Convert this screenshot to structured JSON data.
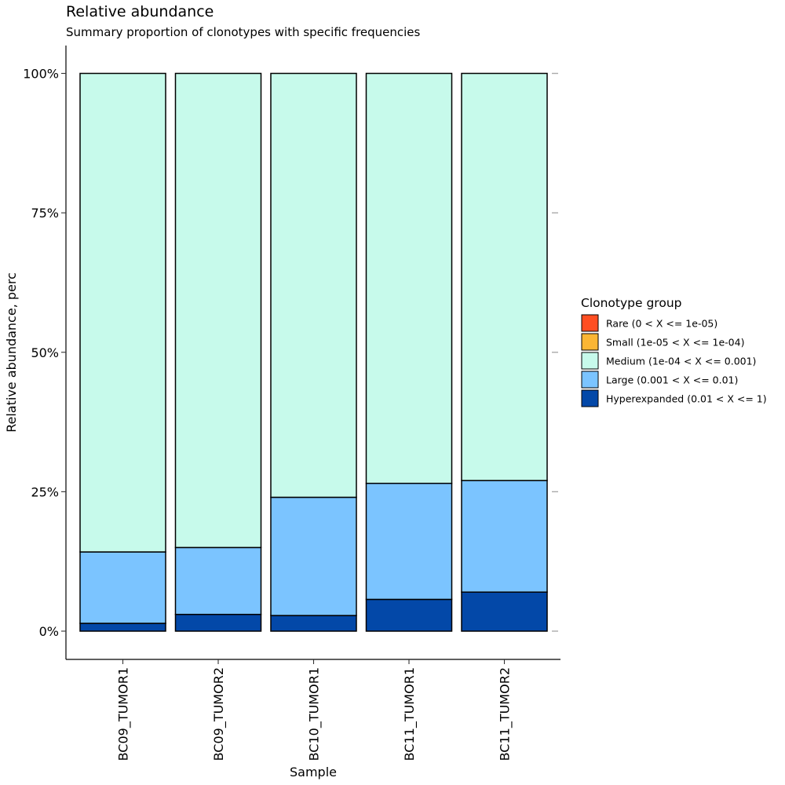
{
  "chart_data": {
    "type": "bar",
    "stacked": true,
    "title": "Relative abundance",
    "subtitle": "Summary proportion of clonotypes with specific frequencies",
    "xlabel": "Sample",
    "ylabel": "Relative abundance, perc",
    "ylim": [
      0,
      1
    ],
    "yticks": [
      0,
      0.25,
      0.5,
      0.75,
      1.0
    ],
    "ytick_labels": [
      "0%",
      "25%",
      "50%",
      "75%",
      "100%"
    ],
    "grid": false,
    "legend_placement": "right",
    "legend_title": "Clonotype group",
    "categories": [
      "BC09_TUMOR1",
      "BC09_TUMOR2",
      "BC10_TUMOR1",
      "BC11_TUMOR1",
      "BC11_TUMOR2"
    ],
    "series": [
      {
        "name": "Rare (0 < X <= 1e-05)",
        "color": "#FF4E22",
        "values": [
          0,
          0,
          0,
          0,
          0
        ]
      },
      {
        "name": "Small (1e-05 < X <= 1e-04)",
        "color": "#FBB634",
        "values": [
          0,
          0,
          0,
          0,
          0
        ]
      },
      {
        "name": "Medium (1e-04 < X <= 0.001)",
        "color": "#C7FAEB",
        "values": [
          0.858,
          0.85,
          0.76,
          0.735,
          0.73
        ]
      },
      {
        "name": "Large (0.001 < X <= 0.01)",
        "color": "#7BC4FF",
        "values": [
          0.128,
          0.12,
          0.212,
          0.208,
          0.2
        ]
      },
      {
        "name": "Hyperexpanded (0.01 < X <= 1)",
        "color": "#0348A8",
        "values": [
          0.014,
          0.03,
          0.028,
          0.057,
          0.07
        ]
      }
    ],
    "stack_order_bottom_to_top": [
      4,
      3,
      2,
      1,
      0
    ]
  }
}
